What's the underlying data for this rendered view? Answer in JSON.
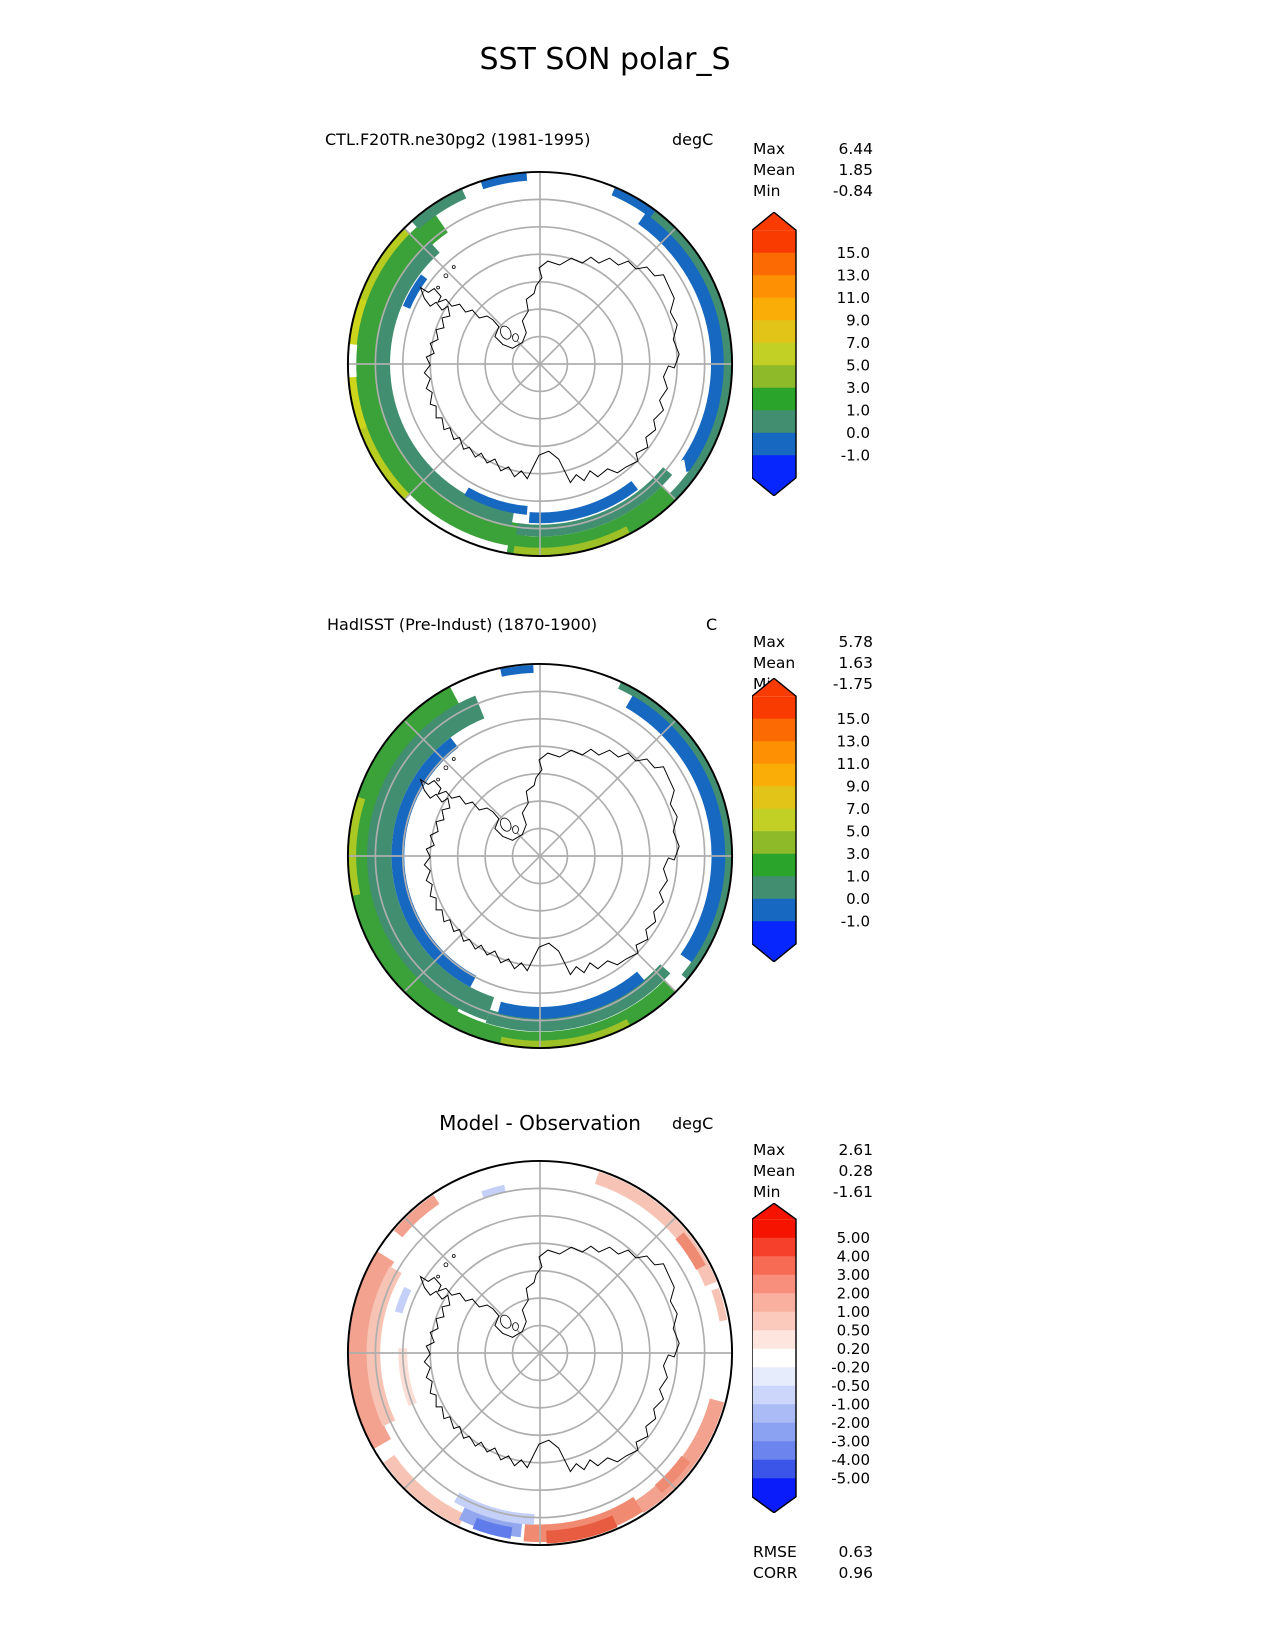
{
  "title": "SST SON polar_S",
  "panels": [
    {
      "title": "CTL.F20TR.ne30pg2 (1981-1995)",
      "units": "degC",
      "stats": {
        "rows": [
          {
            "label": "Max",
            "value": "6.44"
          },
          {
            "label": "Mean",
            "value": "1.85"
          },
          {
            "label": "Min",
            "value": "-0.84"
          }
        ]
      },
      "colorbar": {
        "labels": [
          "15.0",
          "13.0",
          "11.0",
          "9.0",
          "7.0",
          "5.0",
          "3.0",
          "1.0",
          "0.0",
          "-1.0"
        ],
        "colors": [
          "#fa3b01",
          "#fb6a03",
          "#fd9103",
          "#f9ad06",
          "#e2c418",
          "#c2cf25",
          "#8eba2a",
          "#2aa42a",
          "#418e70",
          "#1668c0",
          "#0726fd"
        ]
      }
    },
    {
      "title": "HadISST (Pre-Indust) (1870-1900)",
      "units": "C",
      "stats": {
        "rows": [
          {
            "label": "Max",
            "value": "5.78"
          },
          {
            "label": "Mean",
            "value": "1.63"
          },
          {
            "label": "Min",
            "value": "-1.75"
          }
        ]
      },
      "colorbar": {
        "labels": [
          "15.0",
          "13.0",
          "11.0",
          "9.0",
          "7.0",
          "5.0",
          "3.0",
          "1.0",
          "0.0",
          "-1.0"
        ],
        "colors": [
          "#fa3b01",
          "#fb6a03",
          "#fd9103",
          "#f9ad06",
          "#e2c418",
          "#c2cf25",
          "#8eba2a",
          "#2aa42a",
          "#418e70",
          "#1668c0",
          "#0726fd"
        ]
      }
    },
    {
      "title": "Model - Observation",
      "units": "degC",
      "stats": {
        "rows": [
          {
            "label": "Max",
            "value": "2.61"
          },
          {
            "label": "Mean",
            "value": "0.28"
          },
          {
            "label": "Min",
            "value": "-1.61"
          }
        ]
      },
      "metrics": {
        "rows": [
          {
            "label": "RMSE",
            "value": "0.63"
          },
          {
            "label": "CORR",
            "value": "0.96"
          }
        ]
      },
      "colorbar": {
        "labels": [
          "5.00",
          "4.00",
          "3.00",
          "2.00",
          "1.00",
          "0.50",
          "0.20",
          "-0.20",
          "-0.50",
          "-1.00",
          "-2.00",
          "-3.00",
          "-4.00",
          "-5.00"
        ],
        "colors": [
          "#f61300",
          "#f7402b",
          "#f76b55",
          "#f88f7c",
          "#fab09f",
          "#fccabd",
          "#fee6de",
          "#ffffff",
          "#e7ecfc",
          "#ccd6fa",
          "#aabbf6",
          "#8ba1f2",
          "#6c84ee",
          "#3c55e9",
          "#0b1cfb"
        ]
      }
    }
  ],
  "chart_data": [
    {
      "type": "heatmap",
      "projection": "south-polar-stereographic",
      "title": "CTL.F20TR.ne30pg2 (1981-1995)",
      "units": "degC",
      "variable": "SST",
      "season": "SON",
      "region": "polar_S",
      "contour_levels": [
        -1.0,
        0.0,
        1.0,
        3.0,
        5.0,
        7.0,
        9.0,
        11.0,
        13.0,
        15.0
      ],
      "palette": [
        "#fa3b01",
        "#fb6a03",
        "#fd9103",
        "#f9ad06",
        "#e2c418",
        "#c2cf25",
        "#8eba2a",
        "#2aa42a",
        "#418e70",
        "#1668c0",
        "#0726fd"
      ],
      "stats": {
        "max": 6.44,
        "mean": 1.85,
        "min": -0.84
      },
      "legend_position": "right",
      "colorbar_extend": "both"
    },
    {
      "type": "heatmap",
      "projection": "south-polar-stereographic",
      "title": "HadISST (Pre-Indust) (1870-1900)",
      "units": "C",
      "variable": "SST",
      "season": "SON",
      "region": "polar_S",
      "contour_levels": [
        -1.0,
        0.0,
        1.0,
        3.0,
        5.0,
        7.0,
        9.0,
        11.0,
        13.0,
        15.0
      ],
      "palette": [
        "#fa3b01",
        "#fb6a03",
        "#fd9103",
        "#f9ad06",
        "#e2c418",
        "#c2cf25",
        "#8eba2a",
        "#2aa42a",
        "#418e70",
        "#1668c0",
        "#0726fd"
      ],
      "stats": {
        "max": 5.78,
        "mean": 1.63,
        "min": -1.75
      },
      "legend_position": "right",
      "colorbar_extend": "both"
    },
    {
      "type": "heatmap",
      "projection": "south-polar-stereographic",
      "title": "Model - Observation",
      "units": "degC",
      "variable": "SST difference",
      "season": "SON",
      "region": "polar_S",
      "contour_levels": [
        -5.0,
        -4.0,
        -3.0,
        -2.0,
        -1.0,
        -0.5,
        -0.2,
        0.2,
        0.5,
        1.0,
        2.0,
        3.0,
        4.0,
        5.0
      ],
      "palette": [
        "#f61300",
        "#f7402b",
        "#f76b55",
        "#f88f7c",
        "#fab09f",
        "#fccabd",
        "#fee6de",
        "#ffffff",
        "#e7ecfc",
        "#ccd6fa",
        "#aabbf6",
        "#8ba1f2",
        "#6c84ee",
        "#3c55e9",
        "#0b1cfb"
      ],
      "stats": {
        "max": 2.61,
        "mean": 0.28,
        "min": -1.61
      },
      "rmse": 0.63,
      "corr": 0.96,
      "legend_position": "right",
      "colorbar_extend": "both"
    }
  ]
}
